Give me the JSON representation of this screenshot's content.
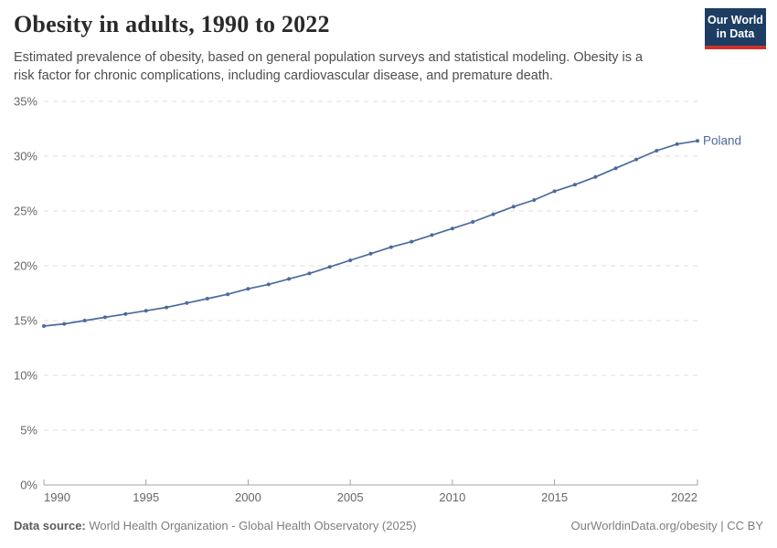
{
  "header": {
    "title": "Obesity in adults, 1990 to 2022",
    "subtitle": "Estimated prevalence of obesity, based on general population surveys and statistical modeling. Obesity is a risk factor for chronic complications, including cardiovascular disease, and premature death.",
    "logo": {
      "line1": "Our World",
      "line2": "in Data",
      "background_color": "#1d3d63",
      "stripe_color": "#cf3229"
    }
  },
  "chart_data": {
    "type": "line",
    "title": "Obesity in adults, 1990 to 2022",
    "xlabel": "",
    "ylabel": "",
    "xlim": [
      1990,
      2022
    ],
    "ylim": [
      0,
      35
    ],
    "grid": "horizontal-dashed",
    "legend_position": "end-of-line",
    "x_ticks": [
      "1990",
      "1995",
      "2000",
      "2005",
      "2010",
      "2015",
      "2022"
    ],
    "y_ticks": [
      "0%",
      "5%",
      "10%",
      "15%",
      "20%",
      "25%",
      "30%",
      "35%"
    ],
    "x": [
      1990,
      1991,
      1992,
      1993,
      1994,
      1995,
      1996,
      1997,
      1998,
      1999,
      2000,
      2001,
      2002,
      2003,
      2004,
      2005,
      2006,
      2007,
      2008,
      2009,
      2010,
      2011,
      2012,
      2013,
      2014,
      2015,
      2016,
      2017,
      2018,
      2019,
      2020,
      2021,
      2022
    ],
    "series": [
      {
        "name": "Poland",
        "unit": "%",
        "values": [
          14.5,
          14.7,
          15.0,
          15.3,
          15.6,
          15.9,
          16.2,
          16.6,
          17.0,
          17.4,
          17.9,
          18.3,
          18.8,
          19.3,
          19.9,
          20.5,
          21.1,
          21.7,
          22.2,
          22.8,
          23.4,
          24.0,
          24.7,
          25.4,
          26.0,
          26.8,
          27.4,
          28.1,
          28.9,
          29.7,
          30.5,
          31.1,
          31.4
        ]
      }
    ],
    "colors": {
      "line": "#4c6a9c",
      "entity_label": "#4c6a9c",
      "grid": "#dcdcdc",
      "axis": "#a3a3a3",
      "tick_label": "#666666"
    }
  },
  "footer": {
    "datasource_label": "Data source:",
    "datasource_value": " World Health Organization - Global Health Observatory (2025)",
    "credit": "OurWorldinData.org/obesity | CC BY"
  }
}
